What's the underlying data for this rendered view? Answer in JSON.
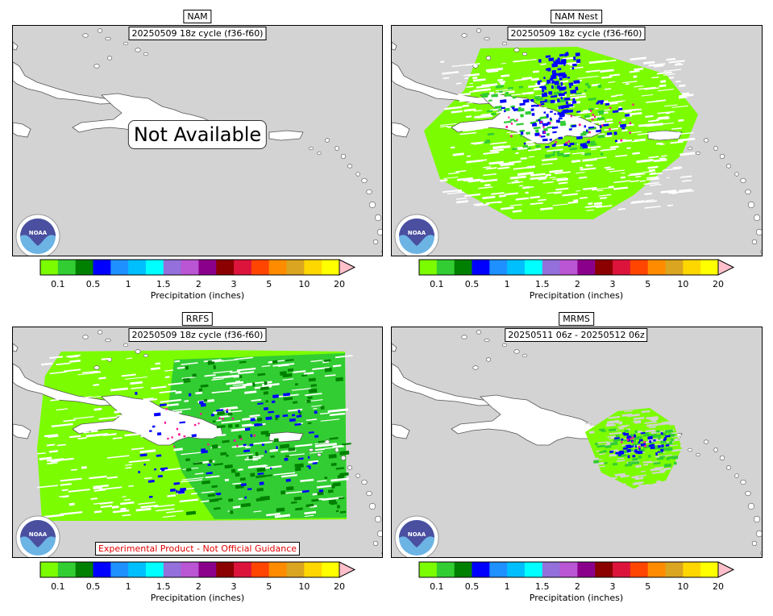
{
  "panels": [
    {
      "title": "NAM",
      "subtitle": "20250509 18z cycle (f36-f60)",
      "overlay": "Not Available",
      "note": ""
    },
    {
      "title": "NAM Nest",
      "subtitle": "20250509 18z cycle (f36-f60)",
      "overlay": "",
      "note": ""
    },
    {
      "title": "RRFS",
      "subtitle": "20250509 18z cycle (f36-f60)",
      "overlay": "",
      "note": "Experimental Product - Not Official Guidance"
    },
    {
      "title": "MRMS",
      "subtitle": "20250511 06z - 20250512 06z",
      "overlay": "",
      "note": ""
    }
  ],
  "colorbar": {
    "label": "Precipitation (inches)",
    "ticks": [
      "0.1",
      "0.5",
      "1",
      "1.5",
      "2",
      "3",
      "5",
      "10",
      "20"
    ],
    "colors": [
      "#7cfc00",
      "#32cd32",
      "#008000",
      "#0000ff",
      "#1e90ff",
      "#00bfff",
      "#00ffff",
      "#9370db",
      "#ba55d3",
      "#8b008b",
      "#8b0000",
      "#dc143c",
      "#ff4500",
      "#ff8c00",
      "#daa520",
      "#ffd700",
      "#ffff00"
    ],
    "extend_color": "#ffc0cb"
  },
  "logo_text": "NOAA",
  "colors": {
    "background": "#d3d3d3",
    "land": "#ffffff",
    "coast": "#555555",
    "light_precip": "#7cfc00",
    "mid_precip": "#32cd32",
    "heavy_precip": "#0000ff",
    "dark_precip": "#008000"
  }
}
